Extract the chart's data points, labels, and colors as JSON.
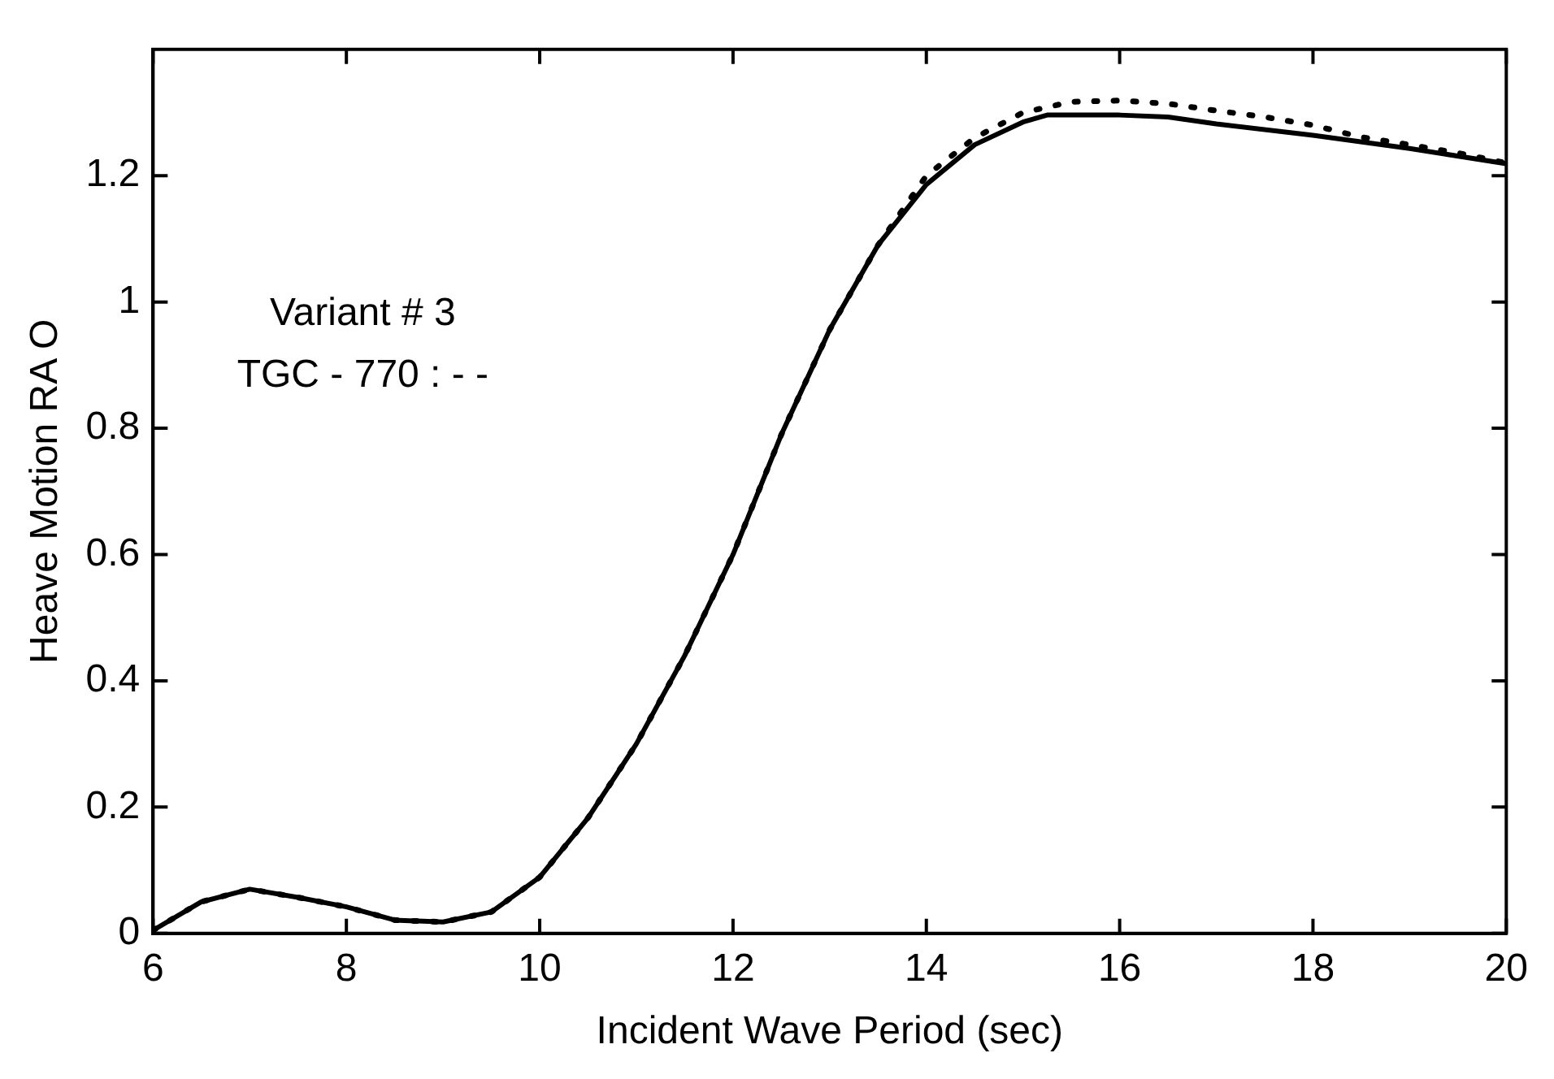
{
  "chart_data": {
    "type": "line",
    "xlabel": "Incident Wave Period (sec)",
    "ylabel": "Heave Motion RA O",
    "annotations": [
      "Variant # 3",
      "TGC - 770 : - -"
    ],
    "xlim": [
      6,
      20
    ],
    "xticks": [
      6,
      8,
      10,
      12,
      14,
      16,
      18,
      20
    ],
    "ylim": [
      0,
      1.4
    ],
    "yticks": [
      0,
      0.2,
      0.4,
      0.6,
      0.8,
      1,
      1.2
    ],
    "grid": false,
    "legend": false,
    "marker": "none",
    "series": [
      {
        "color": "#000000",
        "line_style": "solid",
        "x": [
          6,
          6.5,
          7,
          7.5,
          8,
          8.5,
          9,
          9.5,
          10,
          10.5,
          11,
          11.5,
          12,
          12.5,
          13,
          13.5,
          14,
          14.5,
          15,
          15.25,
          16,
          16.5,
          17,
          18,
          19,
          20
        ],
        "values": [
          0.005,
          0.05,
          0.07,
          0.057,
          0.042,
          0.021,
          0.018,
          0.034,
          0.089,
          0.183,
          0.3,
          0.44,
          0.6,
          0.79,
          0.956,
          1.09,
          1.186,
          1.249,
          1.285,
          1.296,
          1.296,
          1.293,
          1.282,
          1.264,
          1.243,
          1.219
        ]
      },
      {
        "color": "#000000",
        "line_style": "dotted",
        "x": [
          6,
          6.5,
          7,
          7.5,
          8,
          8.5,
          9,
          9.5,
          10,
          10.5,
          11,
          11.5,
          12,
          12.5,
          13,
          13.5,
          14,
          14.5,
          15,
          15.5,
          16,
          16.5,
          17,
          17.5,
          18,
          18.5,
          19,
          19.5,
          20
        ],
        "values": [
          0.005,
          0.05,
          0.07,
          0.057,
          0.042,
          0.021,
          0.018,
          0.034,
          0.089,
          0.183,
          0.3,
          0.44,
          0.6,
          0.79,
          0.956,
          1.09,
          1.2,
          1.26,
          1.3,
          1.317,
          1.319,
          1.314,
          1.303,
          1.293,
          1.28,
          1.261,
          1.249,
          1.236,
          1.22
        ]
      }
    ]
  }
}
